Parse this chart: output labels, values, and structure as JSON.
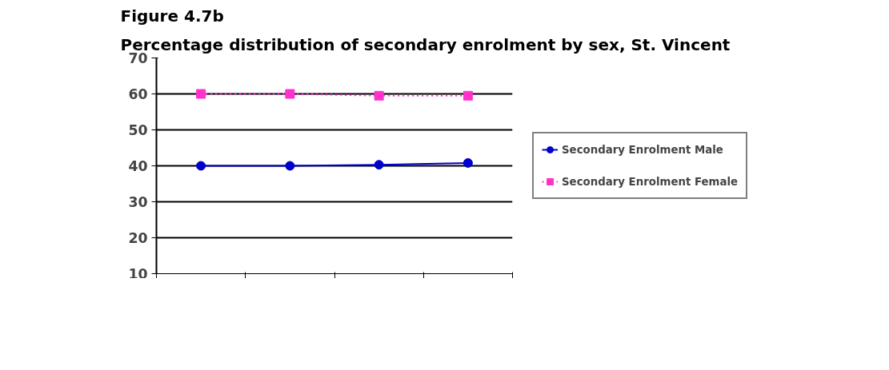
{
  "chart_data": {
    "type": "line",
    "title": "Figure 4.7b",
    "subtitle": "Percentage distribution of secondary enrolment by sex, St. Vincent",
    "categories": [
      null,
      null,
      null,
      null
    ],
    "series": [
      {
        "name": "Secondary Enrolment Male",
        "color": "#0000cc",
        "values": [
          40,
          40,
          40.3,
          40.8
        ],
        "marker": "circle",
        "line_style": "solid"
      },
      {
        "name": "Secondary Enrolment Female",
        "color": "#ff33cc",
        "values": [
          60,
          60,
          59.5,
          59.5
        ],
        "marker": "square",
        "line_style": "dotted"
      }
    ],
    "ylim": [
      10,
      70
    ],
    "yticks": [
      10,
      20,
      30,
      40,
      50,
      60,
      70
    ],
    "grid": "y",
    "legend": "right"
  }
}
